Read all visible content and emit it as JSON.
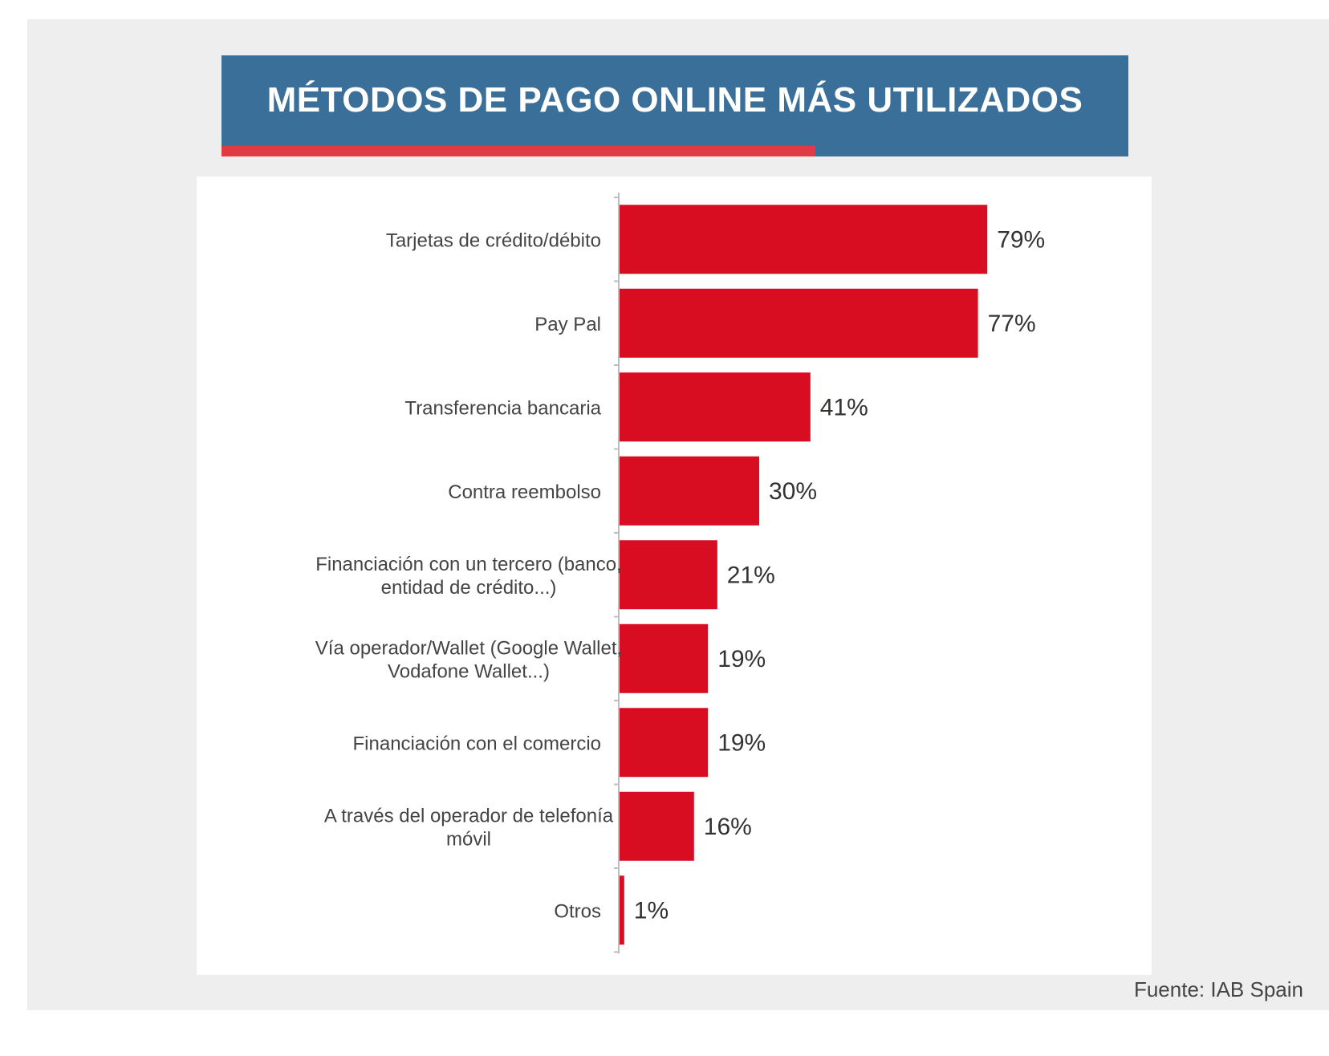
{
  "source_text": "Fuente: IAB Spain",
  "colors": {
    "panel_background": "#eeeeee",
    "banner": "#3a6f9a",
    "banner_accent": "#e03a45",
    "bar": "#d90d22"
  },
  "chart_data": {
    "type": "bar",
    "orientation": "horizontal",
    "title": "MÉTODOS DE PAGO ONLINE MÁS UTILIZADOS",
    "categories": [
      [
        "Tarjetas de crédito/débito"
      ],
      [
        "Pay Pal"
      ],
      [
        "Transferencia bancaria"
      ],
      [
        "Contra reembolso"
      ],
      [
        "Financiación con un tercero (banco,",
        "entidad de crédito...)"
      ],
      [
        "Vía operador/Wallet (Google Wallet,",
        "Vodafone Wallet...)"
      ],
      [
        "Financiación con el comercio"
      ],
      [
        "A través del operador de telefonía",
        "móvil"
      ],
      [
        "Otros"
      ]
    ],
    "values": [
      79,
      77,
      41,
      30,
      21,
      19,
      19,
      16,
      1
    ],
    "value_labels": [
      "79%",
      "77%",
      "41%",
      "30%",
      "21%",
      "19%",
      "19%",
      "16%",
      "1%"
    ],
    "unit": "%",
    "xlim": [
      0,
      100
    ],
    "grid": false,
    "legend": "none"
  }
}
